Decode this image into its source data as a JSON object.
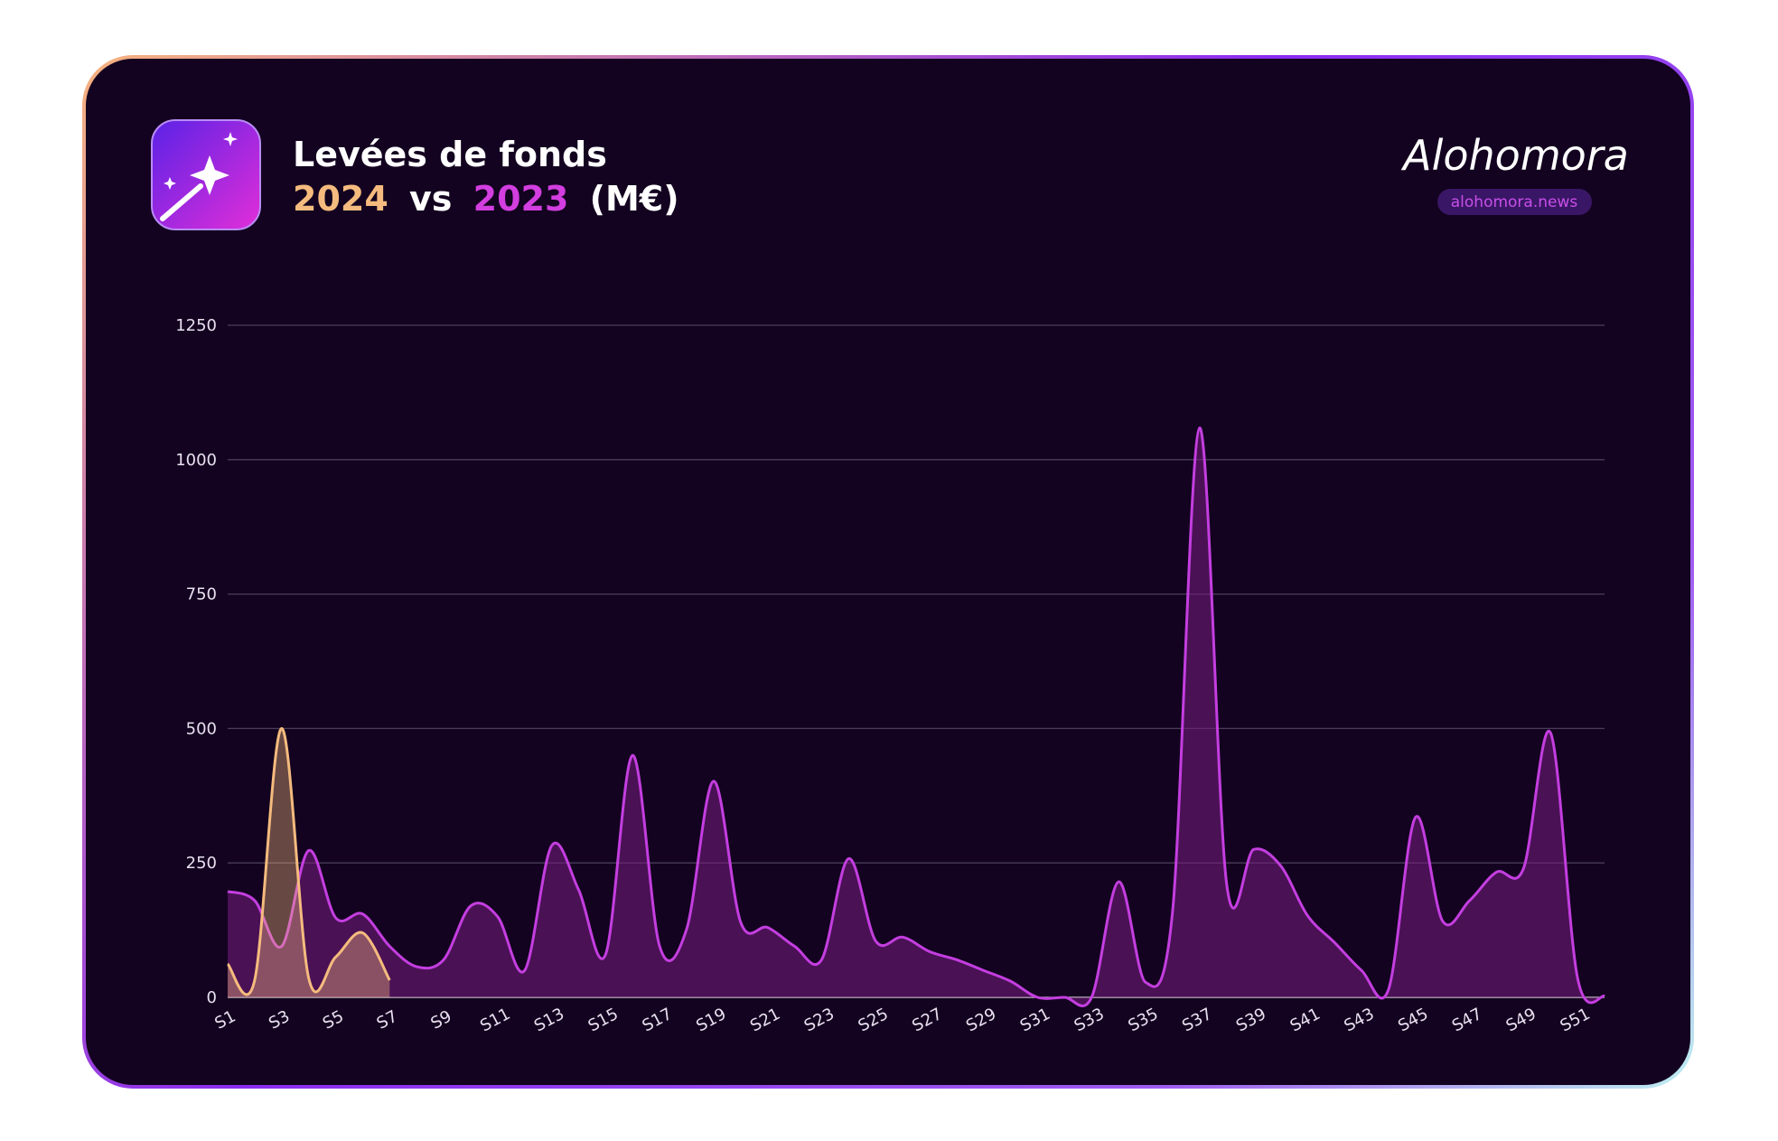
{
  "header": {
    "title": "Levées de fonds",
    "vs": "vs",
    "unit": "(M€)",
    "brand": "Alohomora",
    "site": "alohomora.news"
  },
  "chart_data": {
    "type": "area",
    "categories": [
      "S1",
      null,
      "S3",
      null,
      "S5",
      null,
      "S7",
      null,
      "S9",
      null,
      "S11",
      null,
      "S13",
      null,
      "S15",
      null,
      "S17",
      null,
      "S19",
      null,
      "S21",
      null,
      "S23",
      null,
      "S25",
      null,
      "S27",
      null,
      "S29",
      null,
      "S31",
      null,
      "S33",
      null,
      "S35",
      null,
      "S37",
      null,
      "S39",
      null,
      "S41",
      null,
      "S43",
      null,
      "S45",
      null,
      "S47",
      null,
      "S49",
      null,
      "S51",
      null
    ],
    "series": [
      {
        "name": "2023",
        "color": "#c43ee0",
        "values": [
          197,
          180,
          95,
          273,
          148,
          155,
          95,
          57,
          70,
          170,
          150,
          50,
          282,
          200,
          80,
          450,
          95,
          127,
          402,
          140,
          130,
          95,
          70,
          258,
          105,
          112,
          85,
          70,
          50,
          30,
          0,
          0,
          0,
          215,
          28,
          160,
          1059,
          212,
          275,
          245,
          152,
          102,
          50,
          15,
          335,
          142,
          180,
          233,
          240,
          492,
          36,
          2
        ]
      },
      {
        "name": "2024",
        "color": "#f5bb7e",
        "values": [
          62,
          32,
          500,
          36,
          75,
          120,
          32,
          null,
          null,
          null,
          null,
          null,
          null,
          null,
          null,
          null,
          null,
          null,
          null,
          null,
          null,
          null,
          null,
          null,
          null,
          null,
          null,
          null,
          null,
          null,
          null,
          null,
          null,
          null,
          null,
          null,
          null,
          null,
          null,
          null,
          null,
          null,
          null,
          null,
          null,
          null,
          null,
          null,
          null,
          null,
          null,
          null
        ]
      }
    ],
    "ylim": [
      0,
      1250
    ],
    "yticks": [
      0,
      250,
      500,
      750,
      1000,
      1250
    ],
    "grid": true
  }
}
